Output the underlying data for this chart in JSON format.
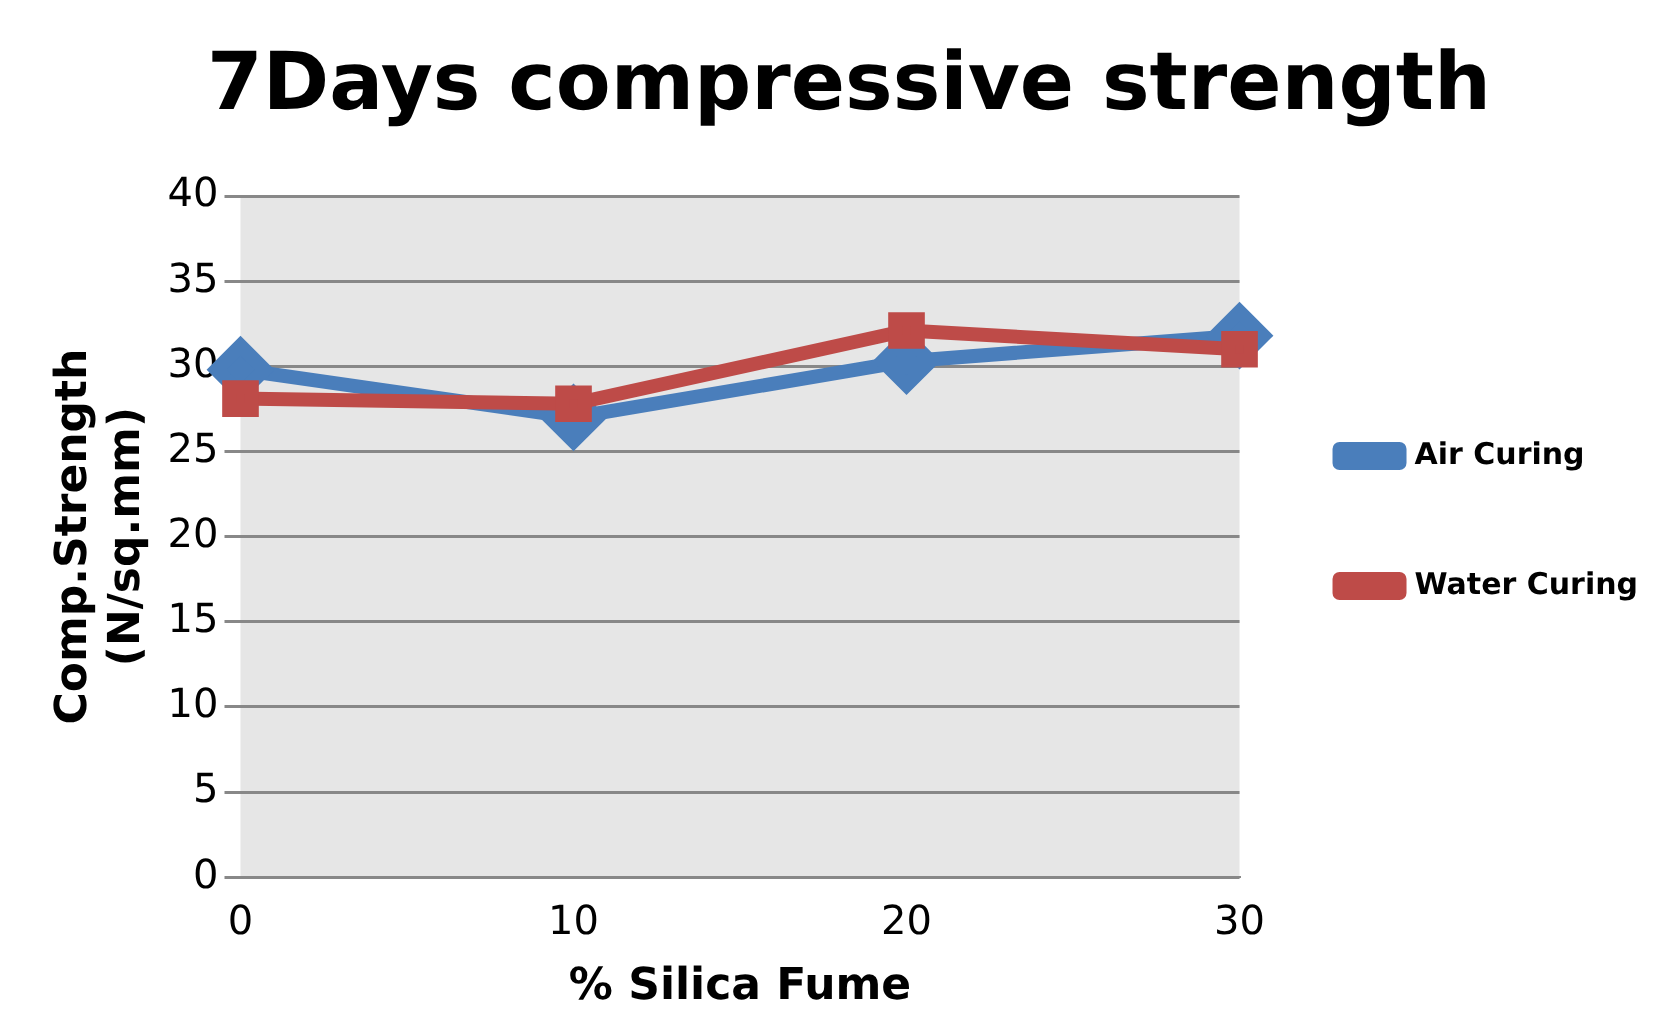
{
  "chart_data": {
    "type": "line",
    "title": "7Days compressive strength",
    "xlabel": "% Silica Fume",
    "ylabel": "Comp.Strength (N/sq.mm)",
    "x": [
      0,
      10,
      20,
      30
    ],
    "series": [
      {
        "name": "Air Curing",
        "color": "#4a7ebb",
        "marker": "diamond",
        "values": [
          29.8,
          27.0,
          30.3,
          31.8
        ]
      },
      {
        "name": "Water Curing",
        "color": "#be4b48",
        "marker": "square",
        "values": [
          28.1,
          27.8,
          32.1,
          31.0
        ]
      }
    ],
    "xlim": [
      0,
      30
    ],
    "xticks": [
      0,
      10,
      20,
      30
    ],
    "ylim": [
      0,
      40
    ],
    "yticks": [
      0,
      5,
      10,
      15,
      20,
      25,
      30,
      35,
      40
    ],
    "grid": "y",
    "legend": "right"
  }
}
